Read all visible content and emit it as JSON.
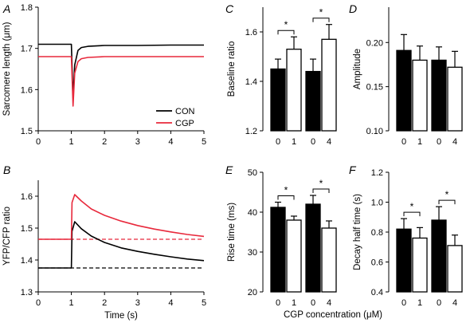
{
  "figure": {
    "shared_xlabel": "CGP concentration (μM)",
    "legend": {
      "position": "bottom-right of panel A",
      "entries": [
        "CON",
        "CGP"
      ]
    },
    "colors": {
      "CON": "#000000",
      "CGP": "#e8293c",
      "bar_filled": "#000000",
      "bar_open": "#ffffff"
    }
  },
  "chart_data": [
    {
      "panel": "A",
      "type": "line",
      "xlabel": "",
      "ylabel": "Sarcomere length (μm)",
      "xlim": [
        0,
        5
      ],
      "ylim": [
        1.5,
        1.8
      ],
      "xticks": [
        "0",
        "1",
        "2",
        "3",
        "4",
        "5"
      ],
      "yticks": [
        "1.5",
        "1.6",
        "1.7",
        "1.8"
      ],
      "series": [
        {
          "name": "CON",
          "color": "#000000",
          "x": [
            0,
            1.0,
            1.05,
            1.1,
            1.2,
            1.3,
            1.5,
            2,
            3,
            4,
            5
          ],
          "y": [
            1.71,
            1.71,
            1.58,
            1.66,
            1.695,
            1.702,
            1.705,
            1.707,
            1.707,
            1.708,
            1.708
          ]
        },
        {
          "name": "CGP",
          "color": "#e8293c",
          "x": [
            0,
            1.0,
            1.05,
            1.1,
            1.2,
            1.3,
            1.5,
            2,
            3,
            4,
            5
          ],
          "y": [
            1.68,
            1.68,
            1.56,
            1.64,
            1.668,
            1.675,
            1.678,
            1.68,
            1.68,
            1.68,
            1.68
          ]
        }
      ]
    },
    {
      "panel": "B",
      "type": "line",
      "xlabel": "Time (s)",
      "ylabel": "YFP/CFP ratio",
      "xlim": [
        0,
        5
      ],
      "ylim": [
        1.3,
        1.65
      ],
      "xticks": [
        "0",
        "1",
        "2",
        "3",
        "4",
        "5"
      ],
      "yticks": [
        "1.3",
        "1.4",
        "1.5",
        "1.6"
      ],
      "series": [
        {
          "name": "CON",
          "color": "#000000",
          "x": [
            0,
            1.0,
            1.02,
            1.1,
            1.3,
            1.6,
            2.0,
            2.5,
            3.0,
            3.5,
            4.0,
            4.5,
            5.0
          ],
          "y": [
            1.375,
            1.375,
            1.49,
            1.52,
            1.498,
            1.475,
            1.455,
            1.438,
            1.427,
            1.418,
            1.41,
            1.403,
            1.398
          ]
        },
        {
          "name": "CGP",
          "color": "#e8293c",
          "x": [
            0,
            1.0,
            1.02,
            1.1,
            1.3,
            1.6,
            2.0,
            2.5,
            3.0,
            3.5,
            4.0,
            4.5,
            5.0
          ],
          "y": [
            1.465,
            1.465,
            1.58,
            1.605,
            1.585,
            1.56,
            1.54,
            1.522,
            1.508,
            1.497,
            1.488,
            1.48,
            1.474
          ]
        }
      ],
      "baselines": [
        {
          "name": "CON",
          "color": "#000000",
          "y": 1.375,
          "style": "dashed"
        },
        {
          "name": "CGP",
          "color": "#e8293c",
          "y": 1.465,
          "style": "dashed"
        }
      ]
    },
    {
      "panel": "C",
      "type": "bar",
      "ylabel": "Baseline ratio",
      "ylim": [
        1.2,
        1.7
      ],
      "yticks": [
        "1.2",
        "1.4",
        "1.6"
      ],
      "categories": [
        "0",
        "1",
        "0",
        "4"
      ],
      "values": [
        1.45,
        1.53,
        1.44,
        1.57
      ],
      "errors": [
        0.04,
        0.05,
        0.05,
        0.06
      ],
      "filled": [
        true,
        false,
        true,
        false
      ],
      "significance": [
        {
          "pair": [
            0,
            1
          ],
          "label": "*"
        },
        {
          "pair": [
            2,
            3
          ],
          "label": "*"
        }
      ]
    },
    {
      "panel": "D",
      "type": "bar",
      "ylabel": "Amplitude",
      "ylim": [
        0.1,
        0.24
      ],
      "yticks": [
        "0.10",
        "0.15",
        "0.20"
      ],
      "categories": [
        "0",
        "1",
        "0",
        "4"
      ],
      "values": [
        0.191,
        0.18,
        0.18,
        0.172
      ],
      "errors": [
        0.018,
        0.016,
        0.015,
        0.018
      ],
      "filled": [
        true,
        false,
        true,
        false
      ],
      "significance": []
    },
    {
      "panel": "E",
      "type": "bar",
      "ylabel": "Rise time (ms)",
      "ylim": [
        20,
        50
      ],
      "yticks": [
        "20",
        "30",
        "40",
        "50"
      ],
      "categories": [
        "0",
        "1",
        "0",
        "4"
      ],
      "values": [
        41.2,
        38.0,
        42.0,
        36.0
      ],
      "errors": [
        1.3,
        1.0,
        2.2,
        1.8
      ],
      "filled": [
        true,
        false,
        true,
        false
      ],
      "significance": [
        {
          "pair": [
            0,
            1
          ],
          "label": "*"
        },
        {
          "pair": [
            2,
            3
          ],
          "label": "*"
        }
      ]
    },
    {
      "panel": "F",
      "type": "bar",
      "ylabel": "Decay half time (s)",
      "ylim": [
        0.4,
        1.2
      ],
      "yticks": [
        "0.4",
        "0.6",
        "0.8",
        "1.0",
        "1.2"
      ],
      "categories": [
        "0",
        "1",
        "0",
        "4"
      ],
      "values": [
        0.82,
        0.76,
        0.88,
        0.71
      ],
      "errors": [
        0.07,
        0.07,
        0.09,
        0.07
      ],
      "filled": [
        true,
        false,
        true,
        false
      ],
      "significance": [
        {
          "pair": [
            0,
            1
          ],
          "label": "*"
        },
        {
          "pair": [
            2,
            3
          ],
          "label": "*"
        }
      ]
    }
  ]
}
